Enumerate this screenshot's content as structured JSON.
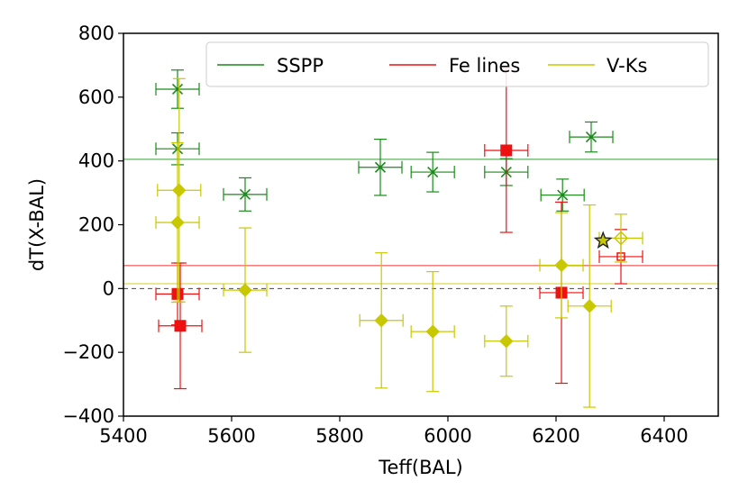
{
  "chart_data": {
    "type": "scatter",
    "title": "",
    "xlabel": "Teff(BAL)",
    "ylabel": "dT(X-BAL)",
    "xlim": [
      5400,
      6500
    ],
    "ylim": [
      -400,
      800
    ],
    "xticks": [
      5400,
      5600,
      5800,
      6000,
      6200,
      6400
    ],
    "yticks": [
      -400,
      -200,
      0,
      200,
      400,
      600,
      800
    ],
    "xtick_labels": [
      "5400",
      "5600",
      "5800",
      "6000",
      "6200",
      "6400"
    ],
    "ytick_labels": [
      "−400",
      "−200",
      "0",
      "200",
      "400",
      "600",
      "800"
    ],
    "legend_position": "top-right",
    "zero_line": {
      "y": 0,
      "style": "dashed",
      "color": "#444444"
    },
    "series": [
      {
        "name": "SSPP",
        "color": "#1a8a1a",
        "marker": "x",
        "mean": 405,
        "points": [
          {
            "x": 5500,
            "y": 625,
            "xerr": 40,
            "yerr": 60
          },
          {
            "x": 5500,
            "y": 438,
            "xerr": 40,
            "yerr": 50
          },
          {
            "x": 5625,
            "y": 295,
            "xerr": 40,
            "yerr": 52
          },
          {
            "x": 5875,
            "y": 380,
            "xerr": 40,
            "yerr": 88
          },
          {
            "x": 5972,
            "y": 365,
            "xerr": 40,
            "yerr": 62
          },
          {
            "x": 6108,
            "y": 365,
            "xerr": 40,
            "yerr": 42
          },
          {
            "x": 6212,
            "y": 293,
            "xerr": 40,
            "yerr": 50
          },
          {
            "x": 6265,
            "y": 475,
            "xerr": 40,
            "yerr": 47
          }
        ]
      },
      {
        "name": "Fe lines",
        "color": "#ee1111",
        "marker": "square",
        "mean": 72,
        "points": [
          {
            "x": 5500,
            "y": -17,
            "xerr": 40,
            "yerr": 97
          },
          {
            "x": 5505,
            "y": -117,
            "xerr": 40,
            "yerr": 197
          },
          {
            "x": 6108,
            "y": 433,
            "xerr": 40,
            "yerr": 257
          },
          {
            "x": 6210,
            "y": -13,
            "xerr": 40,
            "yerr": 284
          },
          {
            "x": 6320,
            "y": 100,
            "xerr": 40,
            "yerr": 85,
            "open": true
          }
        ]
      },
      {
        "name": "V-Ks",
        "color": "#c8c800",
        "marker": "diamond",
        "mean": 15,
        "points": [
          {
            "x": 5503,
            "y": 308,
            "xerr": 40,
            "yerr": 350
          },
          {
            "x": 5500,
            "y": 207,
            "xerr": 40,
            "yerr": 250
          },
          {
            "x": 5625,
            "y": -5,
            "xerr": 40,
            "yerr": 195
          },
          {
            "x": 5877,
            "y": -100,
            "xerr": 40,
            "yerr": 212
          },
          {
            "x": 5972,
            "y": -135,
            "xerr": 40,
            "yerr": 188
          },
          {
            "x": 6108,
            "y": -165,
            "xerr": 40,
            "yerr": 110
          },
          {
            "x": 6210,
            "y": 73,
            "xerr": 40,
            "yerr": 165
          },
          {
            "x": 6262,
            "y": -55,
            "xerr": 40,
            "yerr": 317
          },
          {
            "x": 6320,
            "y": 158,
            "xerr": 40,
            "yerr": 75,
            "open": true
          }
        ]
      }
    ],
    "star": {
      "x": 6287,
      "y": 150,
      "color": "#222222"
    }
  }
}
